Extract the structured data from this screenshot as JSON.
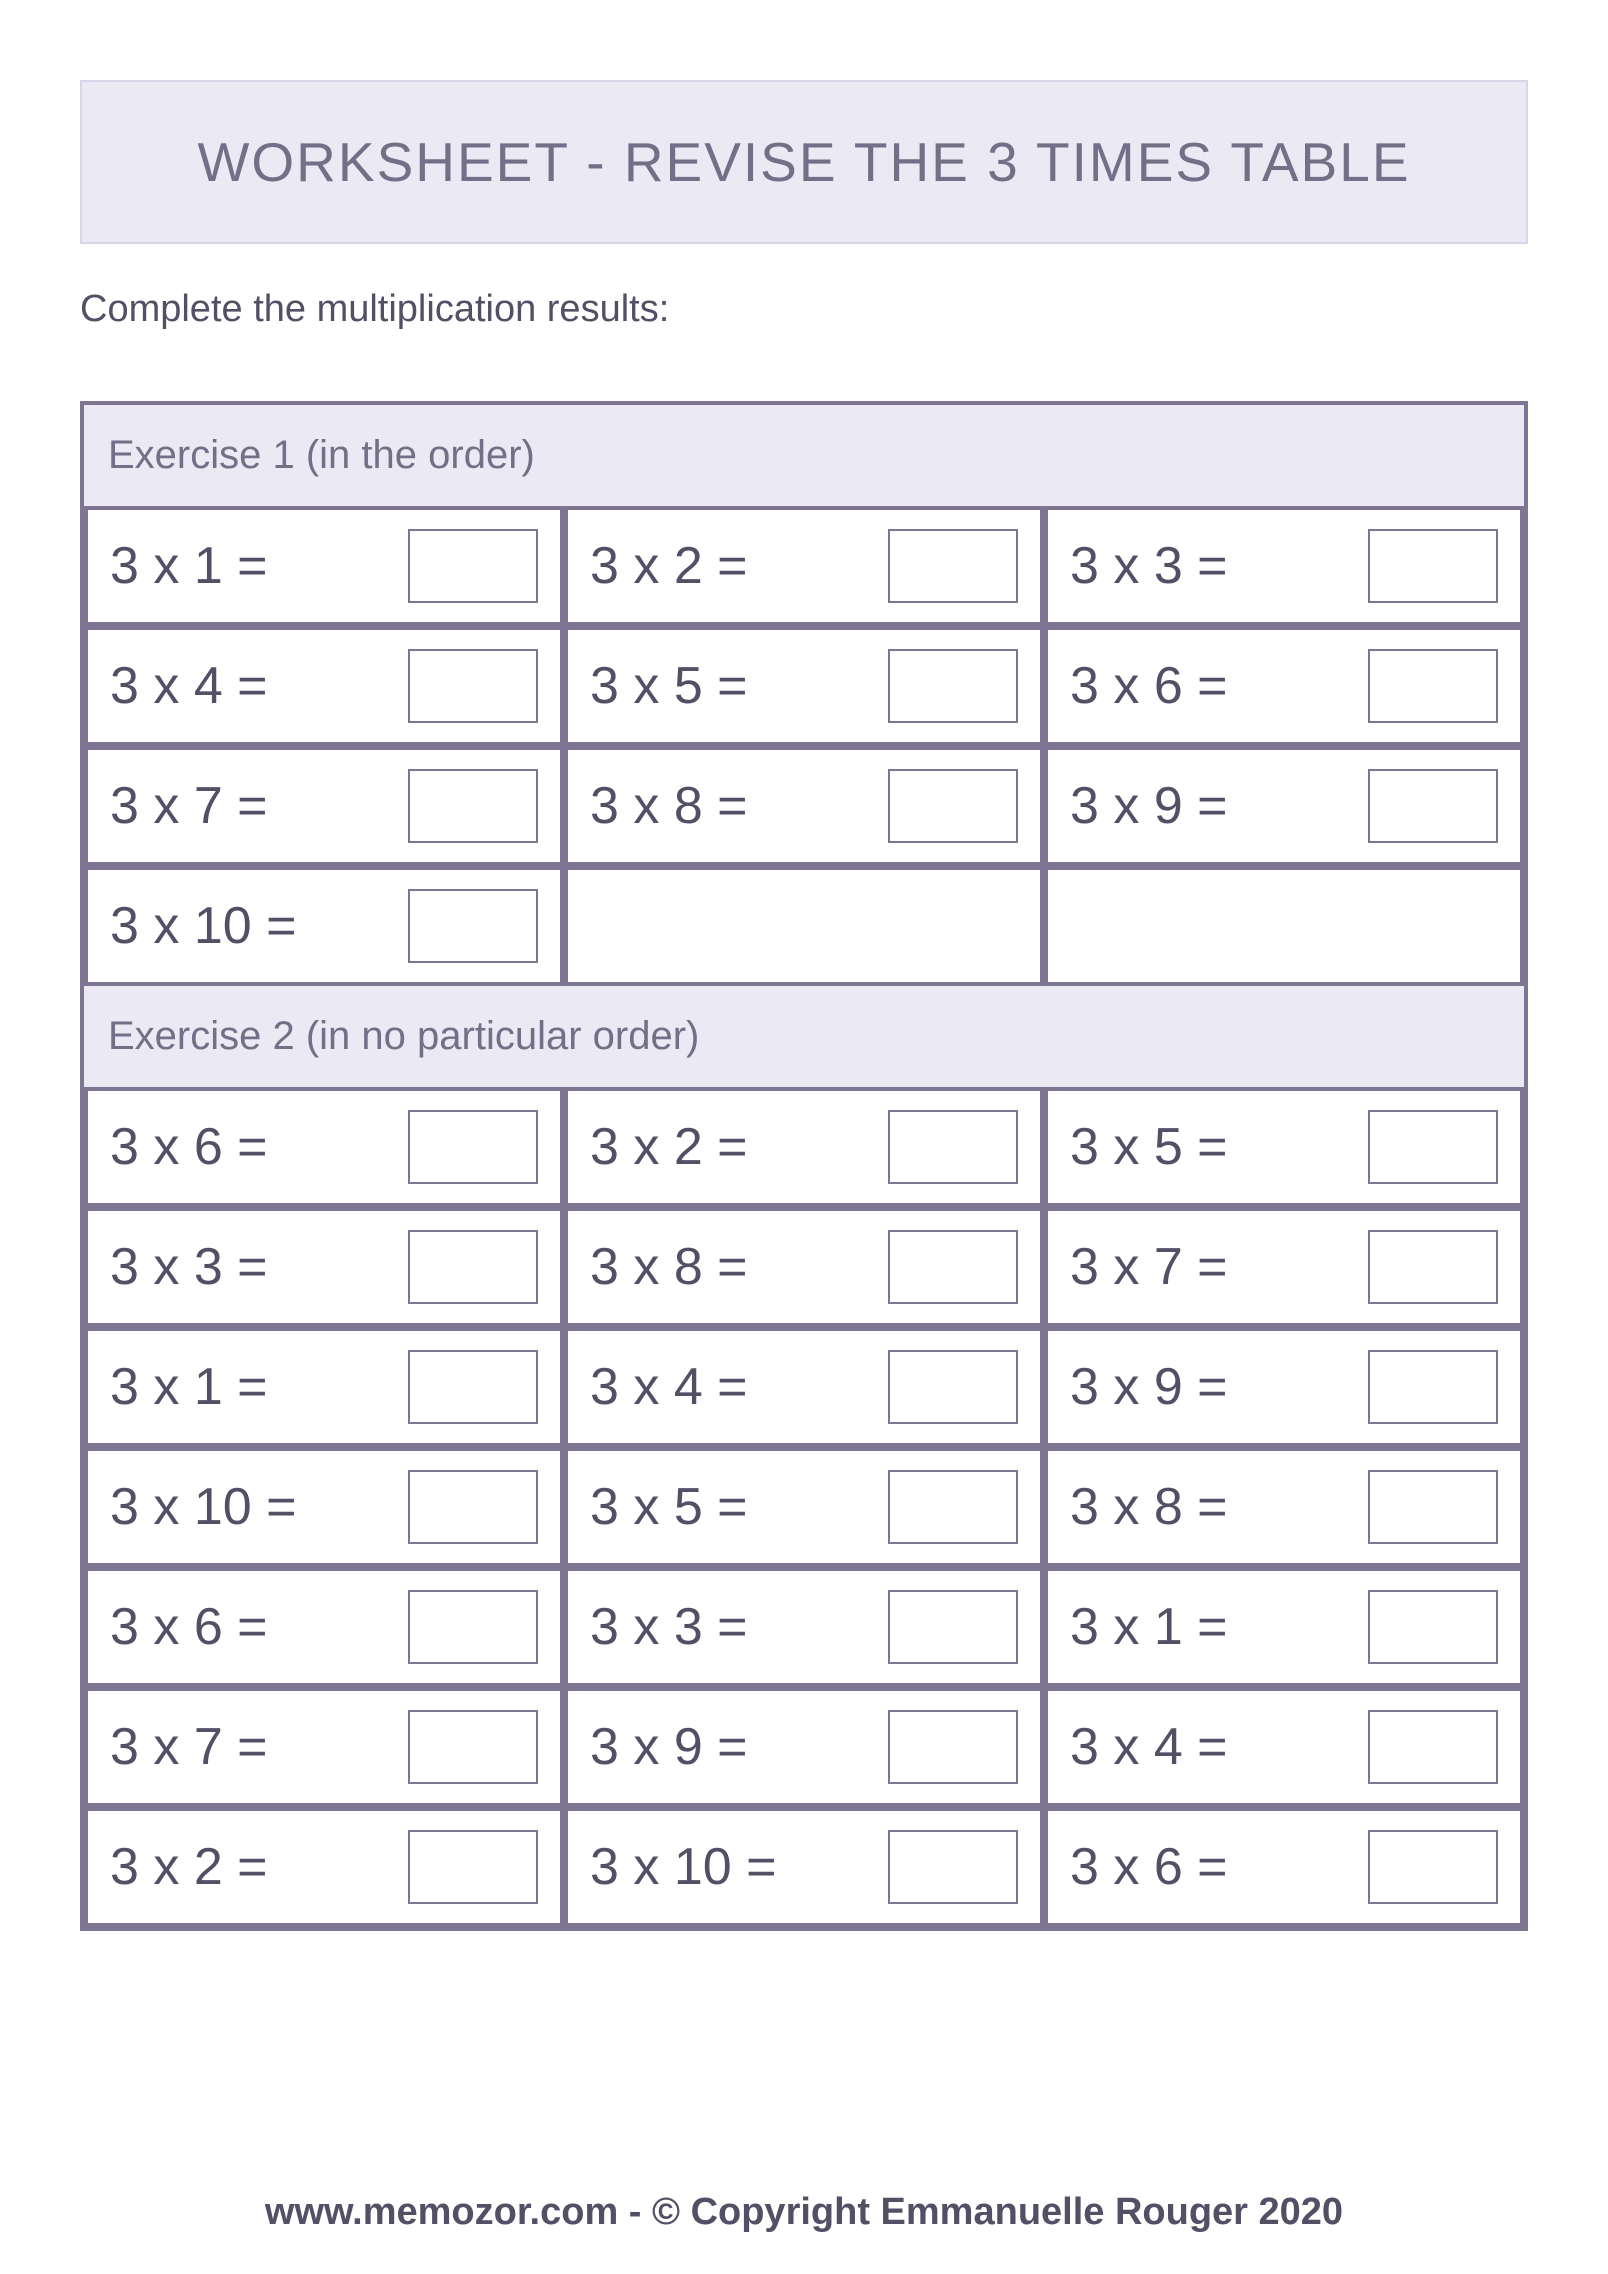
{
  "colors": {
    "header_bg": "#eae9f4",
    "header_border": "#d7d5e8",
    "title_text": "#746e86",
    "instructions_text": "#554f66",
    "table_border": "#7d7592",
    "section_header_bg": "#eae9f4",
    "section_header_text": "#746e86",
    "cell_bg": "#ffffff",
    "cell_text": "#554f66",
    "answer_border": "#7d7592",
    "footer_text": "#554f66"
  },
  "title": "WORKSHEET - REVISE THE 3 TIMES TABLE",
  "instructions": "Complete the multiplication results:",
  "exercises": [
    {
      "label": "Exercise 1 (in the order)",
      "columns": 3,
      "problems": [
        "3 x 1 =",
        "3 x 2 =",
        "3 x 3 =",
        "3 x 4 =",
        "3 x 5 =",
        "3 x 6 =",
        "3 x 7 =",
        "3 x 8 =",
        "3 x 9 =",
        "3 x 10 =",
        "",
        ""
      ]
    },
    {
      "label": "Exercise 2 (in no particular order)",
      "columns": 3,
      "problems": [
        "3 x 6 =",
        "3 x 2 =",
        "3 x 5 =",
        "3 x 3 =",
        "3 x 8 =",
        "3 x 7 =",
        "3 x 1 =",
        "3 x 4 =",
        "3 x 9 =",
        "3 x 10 =",
        "3 x 5 =",
        "3 x 8 =",
        "3 x 6 =",
        "3 x 3 =",
        "3 x 1 =",
        "3 x 7 =",
        "3 x 9 =",
        "3 x 4 =",
        "3 x 2 =",
        "3 x 10 =",
        "3 x 6 ="
      ]
    }
  ],
  "footer": "www.memozor.com - © Copyright Emmanuelle Rouger 2020"
}
